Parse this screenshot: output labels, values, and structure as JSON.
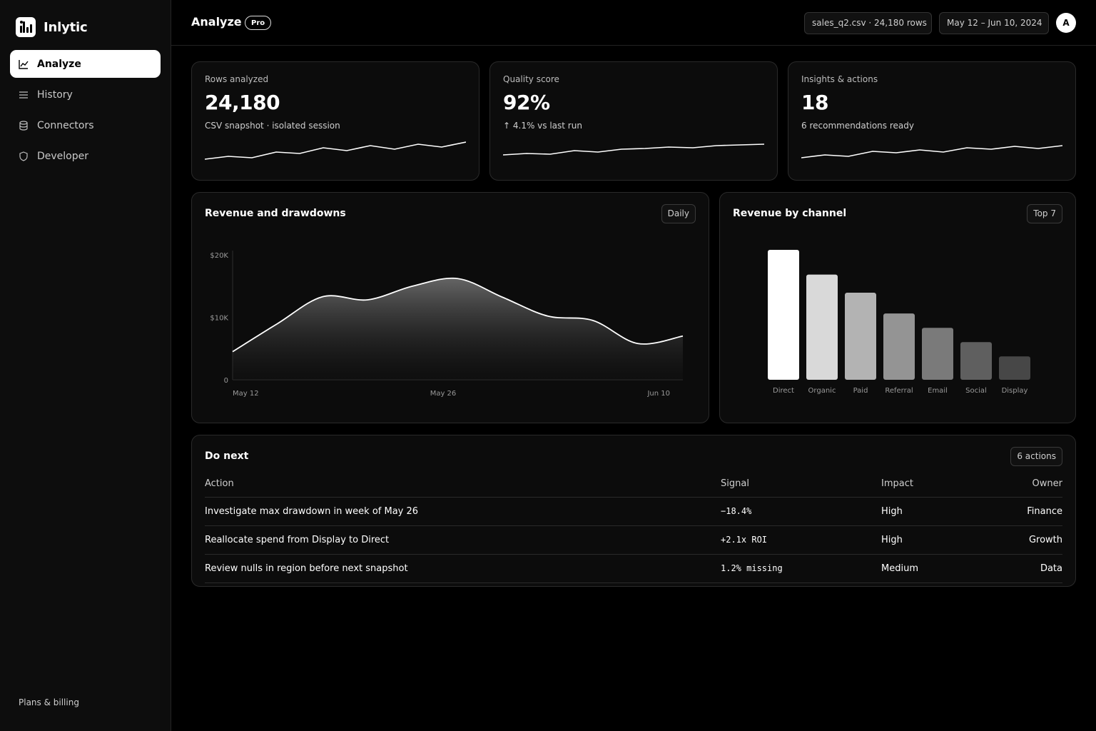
{
  "app": {
    "name": "Inlytic"
  },
  "sidebar": {
    "items": [
      {
        "label": "Analyze",
        "icon": "line-chart-icon",
        "active": true
      },
      {
        "label": "History",
        "icon": "list-icon",
        "active": false
      },
      {
        "label": "Connectors",
        "icon": "database-icon",
        "active": false
      },
      {
        "label": "Developer",
        "icon": "shield-icon",
        "active": false
      }
    ],
    "footer_link": "Plans & billing"
  },
  "header": {
    "title": "Analyze",
    "badge": "Pro",
    "file_pill": "sales_q2.csv · 24,180 rows",
    "date_range": "May 12 – Jun 10, 2024",
    "avatar_initial": "A"
  },
  "stats": [
    {
      "label": "Rows analyzed",
      "value": "24,180",
      "sub": "CSV snapshot · isolated session"
    },
    {
      "label": "Quality score",
      "value": "92%",
      "sub": "↑ 4.1% vs last run"
    },
    {
      "label": "Insights & actions",
      "value": "18",
      "sub": "6 recommendations ready"
    }
  ],
  "revenue_card": {
    "title": "Revenue and drawdowns",
    "chip": "Daily"
  },
  "channel_card": {
    "title": "Revenue by channel",
    "chip": "Top 7"
  },
  "chart_data": [
    {
      "type": "area",
      "title": "Revenue and drawdowns",
      "y_ticks": [
        "$20K",
        "$10K",
        "0"
      ],
      "ylim": [
        0,
        20000
      ],
      "x_ticks": [
        "May 12",
        "May 26",
        "Jun 10"
      ],
      "x": [
        "May 12",
        "May 15",
        "May 18",
        "May 21",
        "May 24",
        "May 27",
        "May 30",
        "Jun 2",
        "Jun 5",
        "Jun 7",
        "Jun 10"
      ],
      "values": [
        4500,
        9000,
        13300,
        12800,
        15000,
        16200,
        13200,
        10200,
        9500,
        5800,
        7000
      ],
      "grid": false
    },
    {
      "type": "bar",
      "title": "Revenue by channel",
      "categories": [
        "Direct",
        "Organic",
        "Paid",
        "Referral",
        "Email",
        "Social",
        "Display"
      ],
      "values": [
        100,
        81,
        67,
        51,
        40,
        29,
        18
      ],
      "colors": [
        "#ffffff",
        "#d9d9d9",
        "#b3b3b3",
        "#949494",
        "#7a7a7a",
        "#5f5f5f",
        "#474747"
      ]
    }
  ],
  "do_next": {
    "title": "Do next",
    "chip": "6 actions",
    "columns": [
      "Action",
      "Signal",
      "Impact",
      "Owner"
    ],
    "rows": [
      {
        "action": "Investigate max drawdown in week of May 26",
        "signal": "−18.4%",
        "impact": "High",
        "owner": "Finance"
      },
      {
        "action": "Reallocate spend from Display to Direct",
        "signal": "+2.1x ROI",
        "impact": "High",
        "owner": "Growth"
      },
      {
        "action": "Review nulls in region before next snapshot",
        "signal": "1.2% missing",
        "impact": "Medium",
        "owner": "Data"
      }
    ]
  }
}
